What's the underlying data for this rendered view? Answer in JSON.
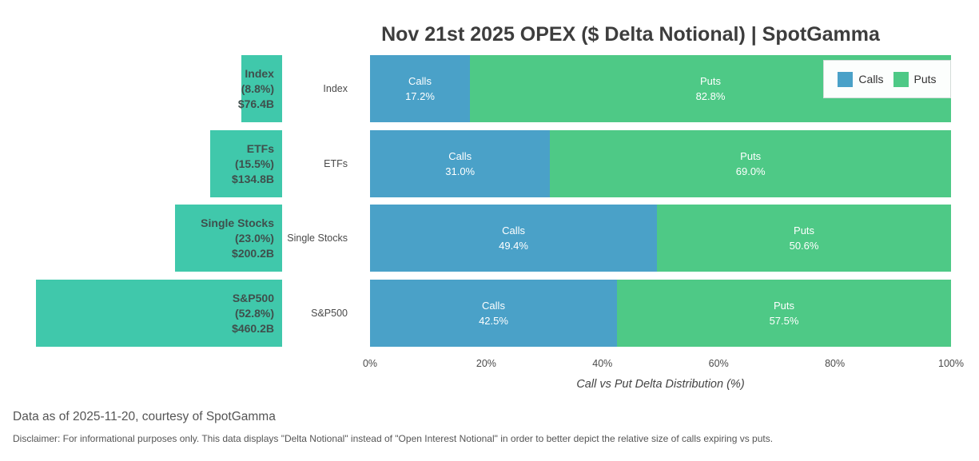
{
  "chart": {
    "title": "Nov 21st 2025 OPEX ($ Delta Notional) | SpotGamma",
    "x_axis_title": "Call vs Put Delta Distribution (%)",
    "colors": {
      "total_teal": "#40c8ab",
      "calls_blue": "#4aa1c8",
      "puts_green": "#4ec986",
      "title_text": "#3d3d3d"
    }
  },
  "chart_data": [
    {
      "type": "bar",
      "orientation": "horizontal",
      "title": "",
      "categories": [
        "Index",
        "ETFs",
        "Single Stocks",
        "S&P500"
      ],
      "share_of_total_pct": [
        8.8,
        15.5,
        23.0,
        52.8
      ],
      "notional_labels": [
        "$76.4B",
        "$134.8B",
        "$200.2B",
        "$460.2B"
      ],
      "notional_billions": [
        76.4,
        134.8,
        200.2,
        460.2
      ]
    },
    {
      "type": "bar",
      "stacked": true,
      "orientation": "horizontal",
      "categories": [
        "Index",
        "ETFs",
        "Single Stocks",
        "S&P500"
      ],
      "series": [
        {
          "name": "Calls",
          "values": [
            17.2,
            31.0,
            49.4,
            42.5
          ]
        },
        {
          "name": "Puts",
          "values": [
            82.8,
            69.0,
            50.6,
            57.5
          ]
        }
      ],
      "xlabel": "Call vs Put Delta Distribution (%)",
      "x_ticks": [
        "0%",
        "20%",
        "40%",
        "60%",
        "80%",
        "100%"
      ],
      "xlim": [
        0,
        100
      ],
      "grid": false,
      "legend_position": "top-right"
    }
  ],
  "footer": {
    "data_as_of": "Data as of 2025-11-20, courtesy of SpotGamma",
    "disclaimer": "Disclaimer: For informational purposes only. This data displays \"Delta Notional\" instead of \"Open Interest Notional\" in order to better depict the relative size of calls expiring vs puts."
  }
}
